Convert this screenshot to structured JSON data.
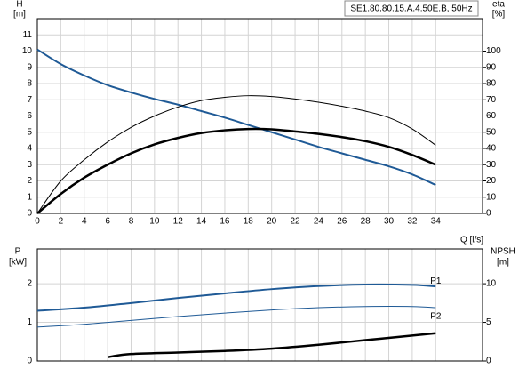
{
  "chart_data": [
    {
      "type": "line",
      "title": "SE1.80.80.15.A.4.50E.B, 50Hz",
      "ylabel": "H",
      "yunit": "[m]",
      "y2label": "eta",
      "y2unit": "[%]",
      "xlabel": "Q [l/s]",
      "xlim": [
        0,
        38
      ],
      "xticks": [
        0,
        2,
        4,
        6,
        8,
        10,
        12,
        14,
        16,
        18,
        20,
        22,
        24,
        26,
        28,
        30,
        32,
        34
      ],
      "ylim": [
        0,
        12
      ],
      "yticks": [
        0,
        1,
        2,
        3,
        4,
        5,
        6,
        7,
        8,
        9,
        10,
        11
      ],
      "y2lim": [
        0,
        120
      ],
      "y2ticks": [
        0,
        10,
        20,
        30,
        40,
        50,
        60,
        70,
        80,
        90,
        100
      ],
      "grid": true,
      "xtick_labels": true,
      "series": [
        {
          "color": "#1f5a96",
          "width": 2,
          "x": [
            0,
            2,
            4,
            6,
            8,
            10,
            12,
            14,
            16,
            18,
            20,
            22,
            24,
            26,
            28,
            30,
            32,
            34
          ],
          "values": [
            10.1,
            9.2,
            8.5,
            7.9,
            7.45,
            7.05,
            6.7,
            6.3,
            5.9,
            5.45,
            5.0,
            4.55,
            4.1,
            3.7,
            3.3,
            2.9,
            2.4,
            1.75
          ]
        },
        {
          "color": "#000000",
          "width": 1,
          "axis": "y2",
          "x": [
            0,
            2,
            4,
            6,
            8,
            10,
            12,
            14,
            16,
            18,
            20,
            22,
            24,
            26,
            28,
            30,
            32,
            34
          ],
          "values": [
            0,
            20,
            33,
            44,
            53,
            60,
            65.5,
            69.5,
            71.5,
            72.5,
            72,
            70.5,
            68.5,
            66,
            63,
            59,
            52,
            42
          ]
        },
        {
          "color": "#000000",
          "width": 2.5,
          "axis": "y2",
          "x": [
            0,
            2,
            4,
            6,
            8,
            10,
            12,
            14,
            16,
            18,
            20,
            22,
            24,
            26,
            28,
            30,
            32,
            34
          ],
          "values": [
            0,
            12,
            22,
            30,
            37,
            42.5,
            46.5,
            49.5,
            51.2,
            52,
            51.8,
            50.5,
            49,
            47,
            44.5,
            41,
            36,
            30
          ]
        }
      ]
    },
    {
      "type": "line",
      "ylabel": "P",
      "yunit": "[kW]",
      "y2label": "NPSH",
      "y2unit": "[m]",
      "xlim": [
        0,
        38
      ],
      "xticks": [
        0,
        2,
        4,
        6,
        8,
        10,
        12,
        14,
        16,
        18,
        20,
        22,
        24,
        26,
        28,
        30,
        32,
        34
      ],
      "ylim": [
        0,
        2.9
      ],
      "yticks": [
        0,
        1,
        2
      ],
      "y2lim": [
        0,
        14.5
      ],
      "y2ticks": [
        0,
        5,
        10
      ],
      "grid": true,
      "xtick_labels": false,
      "series": [
        {
          "name": "P1",
          "color": "#1f5a96",
          "width": 2,
          "x": [
            0,
            4,
            8,
            12,
            16,
            20,
            24,
            28,
            32,
            34
          ],
          "values": [
            1.3,
            1.38,
            1.5,
            1.63,
            1.75,
            1.86,
            1.94,
            1.98,
            1.97,
            1.93
          ]
        },
        {
          "name": "P2",
          "color": "#1f5a96",
          "width": 1,
          "x": [
            0,
            4,
            8,
            12,
            16,
            20,
            24,
            28,
            32,
            34
          ],
          "values": [
            0.88,
            0.95,
            1.05,
            1.15,
            1.24,
            1.32,
            1.38,
            1.41,
            1.41,
            1.38
          ]
        },
        {
          "color": "#000000",
          "width": 2.5,
          "axis": "y2",
          "x": [
            6,
            8,
            12,
            16,
            20,
            24,
            28,
            32,
            34
          ],
          "values": [
            0.5,
            0.9,
            1.1,
            1.3,
            1.6,
            2.1,
            2.7,
            3.3,
            3.6
          ]
        }
      ]
    }
  ]
}
